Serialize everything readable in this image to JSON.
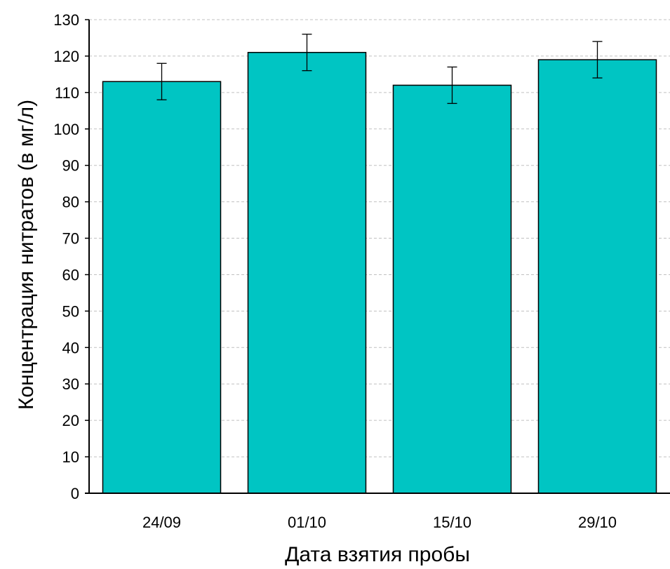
{
  "chart_data": {
    "type": "bar",
    "title": "",
    "xlabel": "Дата взятия пробы",
    "ylabel": "Концентрация нитратов (в мг/л)",
    "categories": [
      "24/09",
      "01/10",
      "15/10",
      "29/10"
    ],
    "values": [
      113,
      121,
      112,
      119
    ],
    "errors": [
      5,
      5,
      5,
      5
    ],
    "ylim": [
      0,
      130
    ],
    "yticks": [
      0,
      10,
      20,
      30,
      40,
      50,
      60,
      70,
      80,
      90,
      100,
      110,
      120,
      130
    ],
    "grid": "horizontal-dashed",
    "legend": "none",
    "colors": {
      "bar": "#00C5C3",
      "bar_edge": "#000000",
      "grid": "#c0c0c0"
    }
  }
}
